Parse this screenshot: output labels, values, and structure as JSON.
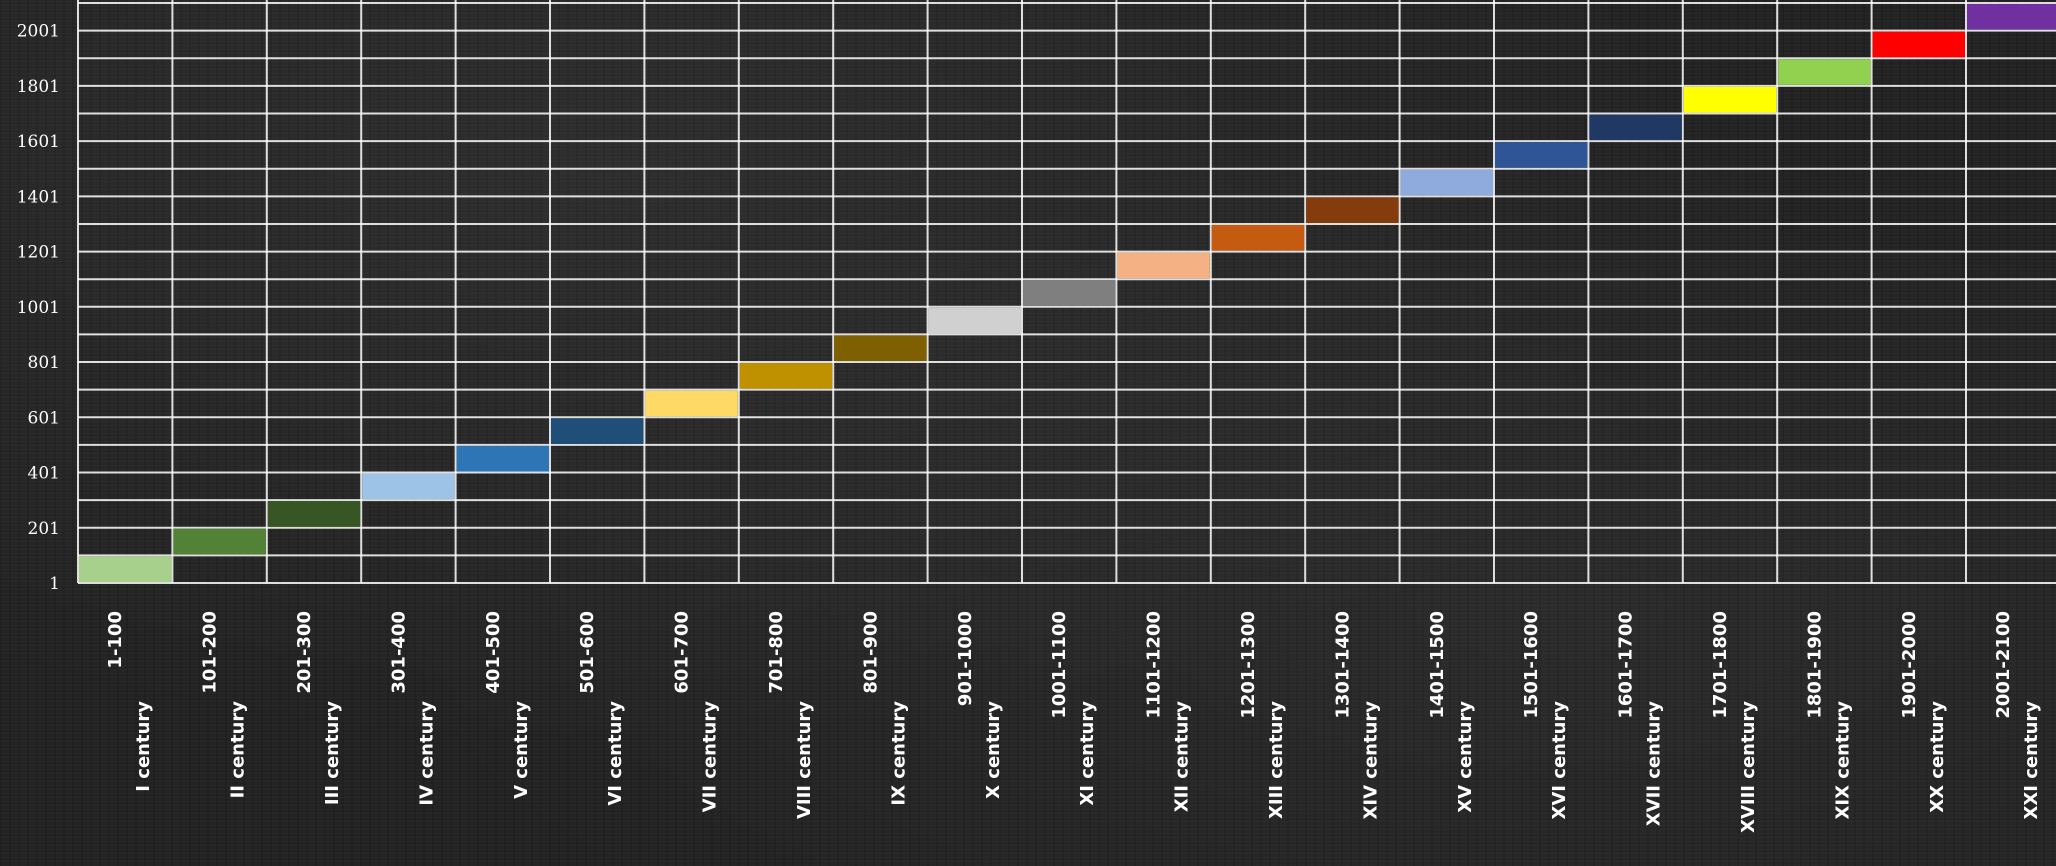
{
  "chart_data": {
    "type": "bar",
    "y_ticks": [
      "1",
      "201",
      "401",
      "601",
      "801",
      "1001",
      "1201",
      "1401",
      "1601",
      "1801",
      "2001"
    ],
    "ylim": [
      1,
      2101
    ],
    "grid": true,
    "categories": [
      {
        "century": "I century",
        "years": "1-100",
        "start": 1,
        "end": 100,
        "color": "#a8d08d"
      },
      {
        "century": "II century",
        "years": "101-200",
        "start": 101,
        "end": 200,
        "color": "#538135"
      },
      {
        "century": "III century",
        "years": "201-300",
        "start": 201,
        "end": 300,
        "color": "#375623"
      },
      {
        "century": "IV century",
        "years": "301-400",
        "start": 301,
        "end": 400,
        "color": "#9dc3e6"
      },
      {
        "century": "V century",
        "years": "401-500",
        "start": 401,
        "end": 500,
        "color": "#2e75b6"
      },
      {
        "century": "VI century",
        "years": "501-600",
        "start": 501,
        "end": 600,
        "color": "#1f4e79"
      },
      {
        "century": "VII century",
        "years": "601-700",
        "start": 601,
        "end": 700,
        "color": "#ffd966"
      },
      {
        "century": "VIII century",
        "years": "701-800",
        "start": 701,
        "end": 800,
        "color": "#bf9000"
      },
      {
        "century": "IX century",
        "years": "801-900",
        "start": 801,
        "end": 900,
        "color": "#7f6000"
      },
      {
        "century": "X century",
        "years": "901-1000",
        "start": 901,
        "end": 1000,
        "color": "#d0d0d0"
      },
      {
        "century": "XI century",
        "years": "1001-1100",
        "start": 1001,
        "end": 1100,
        "color": "#7f7f7f"
      },
      {
        "century": "XII century",
        "years": "1101-1200",
        "start": 1101,
        "end": 1200,
        "color": "#f4b183"
      },
      {
        "century": "XIII century",
        "years": "1201-1300",
        "start": 1201,
        "end": 1300,
        "color": "#c55a11"
      },
      {
        "century": "XIV century",
        "years": "1301-1400",
        "start": 1301,
        "end": 1400,
        "color": "#843c0c"
      },
      {
        "century": "XV century",
        "years": "1401-1500",
        "start": 1401,
        "end": 1500,
        "color": "#8faadc"
      },
      {
        "century": "XVI century",
        "years": "1501-1600",
        "start": 1501,
        "end": 1600,
        "color": "#2f5597"
      },
      {
        "century": "XVII century",
        "years": "1601-1700",
        "start": 1601,
        "end": 1700,
        "color": "#203864"
      },
      {
        "century": "XVIII century",
        "years": "1701-1800",
        "start": 1701,
        "end": 1800,
        "color": "#ffff00"
      },
      {
        "century": "XIX century",
        "years": "1801-1900",
        "start": 1801,
        "end": 1900,
        "color": "#92d050"
      },
      {
        "century": "XX century",
        "years": "1901-2000",
        "start": 1901,
        "end": 2000,
        "color": "#ff0000"
      },
      {
        "century": "XXI century",
        "years": "2001-2100",
        "start": 2001,
        "end": 2100,
        "color": "#7030a0"
      }
    ]
  }
}
